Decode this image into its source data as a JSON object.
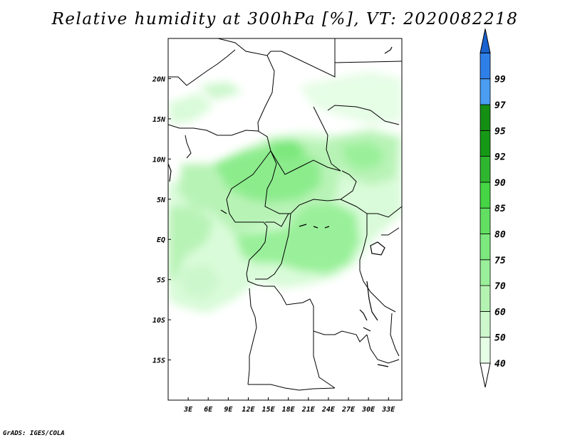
{
  "title": "Relative humidity at 300hPa [%], VT: 2020082218",
  "credit": "GrADS: IGES/COLA",
  "map": {
    "lon_range": [
      0,
      35
    ],
    "lat_range": [
      -20,
      25
    ],
    "x_ticks": [
      "3E",
      "6E",
      "9E",
      "12E",
      "15E",
      "18E",
      "21E",
      "24E",
      "27E",
      "30E",
      "33E"
    ],
    "y_ticks": [
      "20N",
      "15N",
      "10N",
      "5N",
      "EQ",
      "5S",
      "10S",
      "15S"
    ]
  },
  "colorbar": {
    "labels": [
      "40",
      "50",
      "60",
      "70",
      "75",
      "80",
      "85",
      "90",
      "92",
      "95",
      "97",
      "99"
    ],
    "colors": [
      "#ffffff",
      "#e6fde6",
      "#cdf7cd",
      "#b5f3b3",
      "#9af09a",
      "#7de87d",
      "#62df62",
      "#45d545",
      "#2fb62f",
      "#169916",
      "#148f14",
      "#4a9df0",
      "#2f7fe8",
      "#1a62cf"
    ]
  }
}
